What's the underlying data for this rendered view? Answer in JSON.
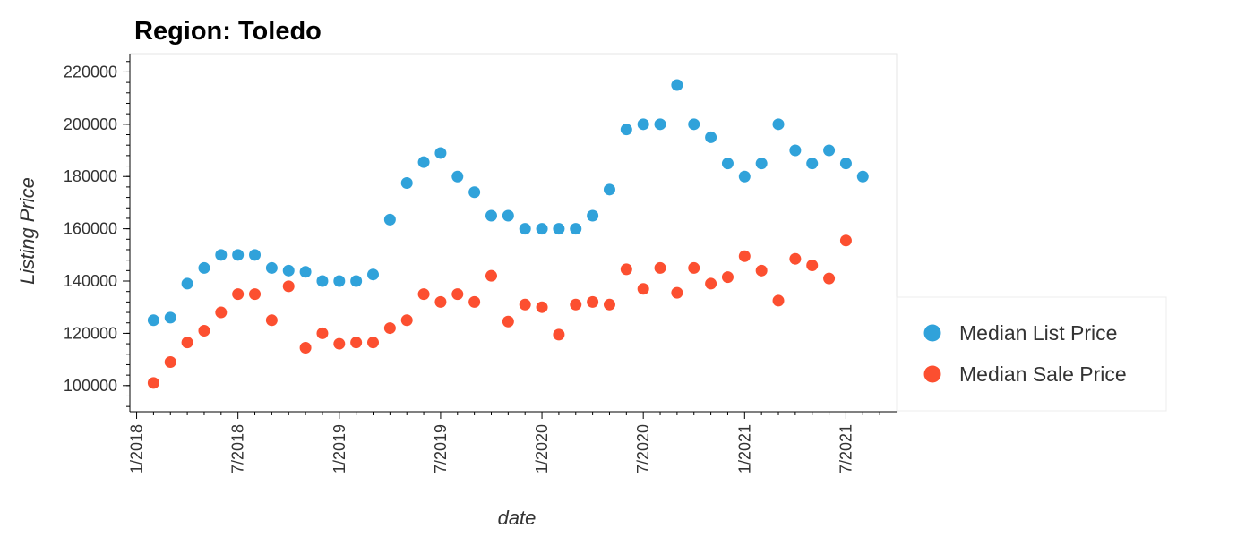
{
  "chart_data": {
    "type": "scatter",
    "title": "Region: Toledo",
    "xlabel": "date",
    "ylabel": "Listing Price",
    "ylim": [
      90000,
      227000
    ],
    "y_ticks": [
      100000,
      120000,
      140000,
      160000,
      180000,
      200000,
      220000
    ],
    "x_ticks": [
      {
        "label": "1/2018",
        "month_index": 0
      },
      {
        "label": "7/2018",
        "month_index": 6
      },
      {
        "label": "1/2019",
        "month_index": 12
      },
      {
        "label": "7/2019",
        "month_index": 18
      },
      {
        "label": "1/2020",
        "month_index": 24
      },
      {
        "label": "7/2020",
        "month_index": 30
      },
      {
        "label": "1/2021",
        "month_index": 36
      },
      {
        "label": "7/2021",
        "month_index": 42
      }
    ],
    "x_month_range": [
      -0.4,
      45.0
    ],
    "x": [
      "2/2018",
      "3/2018",
      "4/2018",
      "5/2018",
      "6/2018",
      "7/2018",
      "8/2018",
      "9/2018",
      "10/2018",
      "11/2018",
      "12/2018",
      "1/2019",
      "2/2019",
      "3/2019",
      "4/2019",
      "5/2019",
      "6/2019",
      "7/2019",
      "8/2019",
      "9/2019",
      "10/2019",
      "11/2019",
      "12/2019",
      "1/2020",
      "2/2020",
      "3/2020",
      "4/2020",
      "5/2020",
      "6/2020",
      "7/2020",
      "8/2020",
      "9/2020",
      "10/2020",
      "11/2020",
      "12/2020",
      "1/2021",
      "2/2021",
      "3/2021",
      "4/2021",
      "5/2021",
      "6/2021",
      "7/2021",
      "8/2021"
    ],
    "x_month_index": [
      1,
      2,
      3,
      4,
      5,
      6,
      7,
      8,
      9,
      10,
      11,
      12,
      13,
      14,
      15,
      16,
      17,
      18,
      19,
      20,
      21,
      22,
      23,
      24,
      25,
      26,
      27,
      28,
      29,
      30,
      31,
      32,
      33,
      34,
      35,
      36,
      37,
      38,
      39,
      40,
      41,
      42,
      43
    ],
    "series": [
      {
        "name": "Median List Price",
        "color": "#30a2da",
        "values": [
          125000,
          126000,
          139000,
          145000,
          150000,
          150000,
          150000,
          145000,
          144000,
          143500,
          140000,
          140000,
          140000,
          142500,
          163500,
          177500,
          185500,
          189000,
          180000,
          174000,
          165000,
          165000,
          160000,
          160000,
          160000,
          160000,
          165000,
          175000,
          198000,
          200000,
          200000,
          215000,
          200000,
          195000,
          185000,
          180000,
          185000,
          200000,
          190000,
          185000,
          190000,
          185000,
          180000
        ]
      },
      {
        "name": "Median Sale Price",
        "color": "#fc4f30",
        "values": [
          101000,
          109000,
          116500,
          121000,
          128000,
          135000,
          135000,
          125000,
          138000,
          114500,
          120000,
          116000,
          116500,
          116500,
          122000,
          125000,
          135000,
          132000,
          135000,
          132000,
          142000,
          124500,
          131000,
          130000,
          119500,
          131000,
          132000,
          131000,
          144500,
          137000,
          145000,
          135500,
          145000,
          139000,
          141500,
          149500,
          144000,
          132500,
          148500,
          146000,
          141000,
          155500,
          null
        ]
      }
    ],
    "legend_position": "right"
  }
}
